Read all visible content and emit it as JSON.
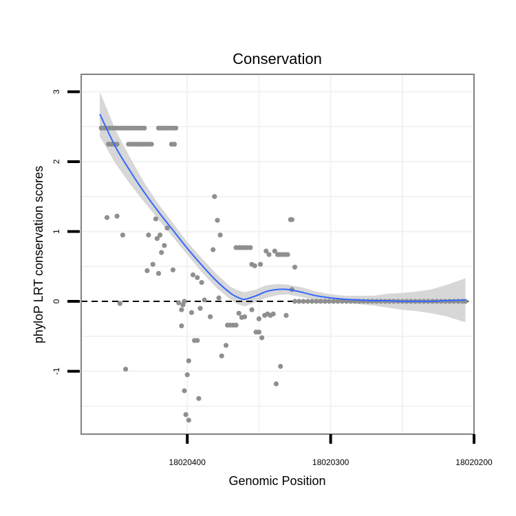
{
  "chart_data": {
    "type": "scatter",
    "title": "Conservation",
    "xlabel": "Genomic Position",
    "ylabel": "phyloP LRT conservation scores",
    "x_reversed": true,
    "xlim": [
      18020474,
      18020200
    ],
    "ylim": [
      -1.9,
      3.25
    ],
    "x_ticks": [
      18020400,
      18020300,
      18020200
    ],
    "x_tick_labels": [
      "18020400",
      "18020300",
      "18020200"
    ],
    "y_ticks": [
      -1,
      0,
      1,
      2,
      3
    ],
    "y_tick_labels": [
      "-1",
      "0",
      "1",
      "2",
      "3"
    ],
    "grid": true,
    "reference_line": {
      "y": 0,
      "style": "dashed"
    },
    "colors": {
      "points": "#8f8f8f",
      "smooth": "#3366ff",
      "ribbon": "#d3d3d3",
      "panel_border": "#808080",
      "grid": "#f2f2f2"
    },
    "points": [
      [
        18020460,
        2.48
      ],
      [
        18020458,
        2.48
      ],
      [
        18020456,
        2.48
      ],
      [
        18020454,
        2.48
      ],
      [
        18020452,
        2.48
      ],
      [
        18020450,
        2.48
      ],
      [
        18020448,
        2.48
      ],
      [
        18020446,
        2.48
      ],
      [
        18020444,
        2.48
      ],
      [
        18020442,
        2.48
      ],
      [
        18020440,
        2.48
      ],
      [
        18020438,
        2.48
      ],
      [
        18020436,
        2.48
      ],
      [
        18020434,
        2.48
      ],
      [
        18020432,
        2.48
      ],
      [
        18020430,
        2.48
      ],
      [
        18020420,
        2.48
      ],
      [
        18020418,
        2.48
      ],
      [
        18020416,
        2.48
      ],
      [
        18020414,
        2.48
      ],
      [
        18020412,
        2.48
      ],
      [
        18020410,
        2.48
      ],
      [
        18020408,
        2.48
      ],
      [
        18020455,
        2.25
      ],
      [
        18020453,
        2.25
      ],
      [
        18020451,
        2.25
      ],
      [
        18020449,
        2.25
      ],
      [
        18020441,
        2.25
      ],
      [
        18020439,
        2.25
      ],
      [
        18020437,
        2.25
      ],
      [
        18020435,
        2.25
      ],
      [
        18020433,
        2.25
      ],
      [
        18020431,
        2.25
      ],
      [
        18020429,
        2.25
      ],
      [
        18020427,
        2.25
      ],
      [
        18020425,
        2.25
      ],
      [
        18020411,
        2.25
      ],
      [
        18020409,
        2.25
      ],
      [
        18020456,
        1.2
      ],
      [
        18020449,
        1.22
      ],
      [
        18020445,
        0.95
      ],
      [
        18020443,
        -0.97
      ],
      [
        18020447,
        -0.03
      ],
      [
        18020427,
        0.95
      ],
      [
        18020424,
        0.53
      ],
      [
        18020422,
        1.18
      ],
      [
        18020421,
        0.9
      ],
      [
        18020419,
        0.95
      ],
      [
        18020416,
        0.8
      ],
      [
        18020420,
        0.4
      ],
      [
        18020418,
        0.7
      ],
      [
        18020414,
        1.05
      ],
      [
        18020410,
        0.45
      ],
      [
        18020428,
        0.44
      ],
      [
        18020406,
        -0.02
      ],
      [
        18020404,
        -0.35
      ],
      [
        18020403,
        -0.05
      ],
      [
        18020402,
        0.0
      ],
      [
        18020404,
        -0.12
      ],
      [
        18020400,
        -1.05
      ],
      [
        18020402,
        -1.28
      ],
      [
        18020401,
        -1.62
      ],
      [
        18020399,
        -1.7
      ],
      [
        18020399,
        -0.85
      ],
      [
        18020397,
        -0.16
      ],
      [
        18020396,
        0.38
      ],
      [
        18020395,
        -0.56
      ],
      [
        18020393,
        -0.56
      ],
      [
        18020392,
        -1.39
      ],
      [
        18020393,
        0.34
      ],
      [
        18020390,
        0.27
      ],
      [
        18020391,
        -0.1
      ],
      [
        18020388,
        0.02
      ],
      [
        18020381,
        1.5
      ],
      [
        18020379,
        1.16
      ],
      [
        18020377,
        0.95
      ],
      [
        18020382,
        0.74
      ],
      [
        18020376,
        -0.78
      ],
      [
        18020373,
        -0.63
      ],
      [
        18020384,
        -0.22
      ],
      [
        18020378,
        0.05
      ],
      [
        18020372,
        -0.34
      ],
      [
        18020370,
        -0.34
      ],
      [
        18020368,
        -0.34
      ],
      [
        18020366,
        -0.34
      ],
      [
        18020364,
        -0.17
      ],
      [
        18020362,
        -0.23
      ],
      [
        18020360,
        -0.22
      ],
      [
        18020366,
        0.77
      ],
      [
        18020364,
        0.77
      ],
      [
        18020362,
        0.77
      ],
      [
        18020360,
        0.77
      ],
      [
        18020358,
        0.77
      ],
      [
        18020356,
        0.77
      ],
      [
        18020355,
        0.53
      ],
      [
        18020353,
        0.51
      ],
      [
        18020349,
        0.53
      ],
      [
        18020345,
        0.72
      ],
      [
        18020343,
        0.67
      ],
      [
        18020339,
        0.72
      ],
      [
        18020337,
        0.67
      ],
      [
        18020336,
        0.67
      ],
      [
        18020334,
        0.67
      ],
      [
        18020332,
        0.67
      ],
      [
        18020330,
        0.67
      ],
      [
        18020328,
        1.17
      ],
      [
        18020327,
        1.17
      ],
      [
        18020325,
        0.49
      ],
      [
        18020327,
        0.17
      ],
      [
        18020355,
        -0.12
      ],
      [
        18020352,
        -0.44
      ],
      [
        18020350,
        -0.44
      ],
      [
        18020348,
        -0.52
      ],
      [
        18020346,
        -0.2
      ],
      [
        18020344,
        -0.18
      ],
      [
        18020342,
        -0.2
      ],
      [
        18020340,
        -0.18
      ],
      [
        18020338,
        -1.18
      ],
      [
        18020335,
        -0.93
      ],
      [
        18020331,
        -0.2
      ],
      [
        18020350,
        -0.25
      ],
      [
        18020325,
        0.0
      ],
      [
        18020322,
        0.0
      ],
      [
        18020319,
        0.0
      ],
      [
        18020316,
        0.0
      ],
      [
        18020313,
        0.0
      ],
      [
        18020310,
        0.0
      ],
      [
        18020307,
        0.0
      ],
      [
        18020304,
        0.0
      ],
      [
        18020301,
        0.0
      ],
      [
        18020298,
        0.0
      ],
      [
        18020295,
        0.0
      ],
      [
        18020292,
        0.0
      ],
      [
        18020289,
        0.0
      ],
      [
        18020286,
        0.0
      ],
      [
        18020283,
        0.0
      ],
      [
        18020280,
        0.0
      ],
      [
        18020277,
        0.0
      ],
      [
        18020274,
        0.0
      ],
      [
        18020271,
        0.0
      ],
      [
        18020268,
        0.0
      ],
      [
        18020265,
        0.0
      ],
      [
        18020262,
        0.0
      ],
      [
        18020259,
        0.0
      ],
      [
        18020256,
        0.0
      ],
      [
        18020253,
        0.0
      ],
      [
        18020250,
        0.0
      ],
      [
        18020247,
        0.0
      ],
      [
        18020244,
        0.0
      ],
      [
        18020241,
        0.0
      ],
      [
        18020238,
        0.0
      ],
      [
        18020235,
        0.0
      ],
      [
        18020232,
        0.0
      ],
      [
        18020229,
        0.0
      ],
      [
        18020226,
        0.0
      ],
      [
        18020223,
        0.0
      ],
      [
        18020220,
        0.0
      ],
      [
        18020217,
        0.0
      ],
      [
        18020214,
        0.0
      ],
      [
        18020211,
        0.0
      ],
      [
        18020208,
        0.0
      ],
      [
        18020206,
        0.0
      ]
    ],
    "smooth": {
      "x": [
        18020461,
        18020450,
        18020440,
        18020430,
        18020420,
        18020410,
        18020400,
        18020390,
        18020380,
        18020370,
        18020365,
        18020360,
        18020352,
        18020345,
        18020337,
        18020330,
        18020320,
        18020310,
        18020300,
        18020290,
        18020280,
        18020270,
        18020260,
        18020250,
        18020240,
        18020230,
        18020220,
        18020206
      ],
      "y": [
        2.68,
        2.21,
        1.87,
        1.56,
        1.28,
        1.02,
        0.76,
        0.52,
        0.3,
        0.12,
        0.06,
        0.03,
        0.08,
        0.14,
        0.17,
        0.17,
        0.13,
        0.08,
        0.05,
        0.03,
        0.02,
        0.01,
        0.01,
        0.0,
        0.0,
        0.0,
        0.01,
        0.02
      ],
      "lower": [
        2.36,
        1.97,
        1.68,
        1.42,
        1.17,
        0.92,
        0.67,
        0.42,
        0.2,
        0.03,
        -0.04,
        -0.07,
        -0.01,
        0.05,
        0.09,
        0.1,
        0.06,
        0.02,
        0.0,
        -0.02,
        -0.04,
        -0.06,
        -0.09,
        -0.12,
        -0.14,
        -0.17,
        -0.21,
        -0.3
      ],
      "upper": [
        3.0,
        2.45,
        2.06,
        1.7,
        1.39,
        1.12,
        0.85,
        0.62,
        0.4,
        0.21,
        0.16,
        0.13,
        0.17,
        0.23,
        0.25,
        0.24,
        0.2,
        0.14,
        0.1,
        0.08,
        0.08,
        0.08,
        0.11,
        0.12,
        0.14,
        0.17,
        0.23,
        0.33
      ]
    }
  }
}
